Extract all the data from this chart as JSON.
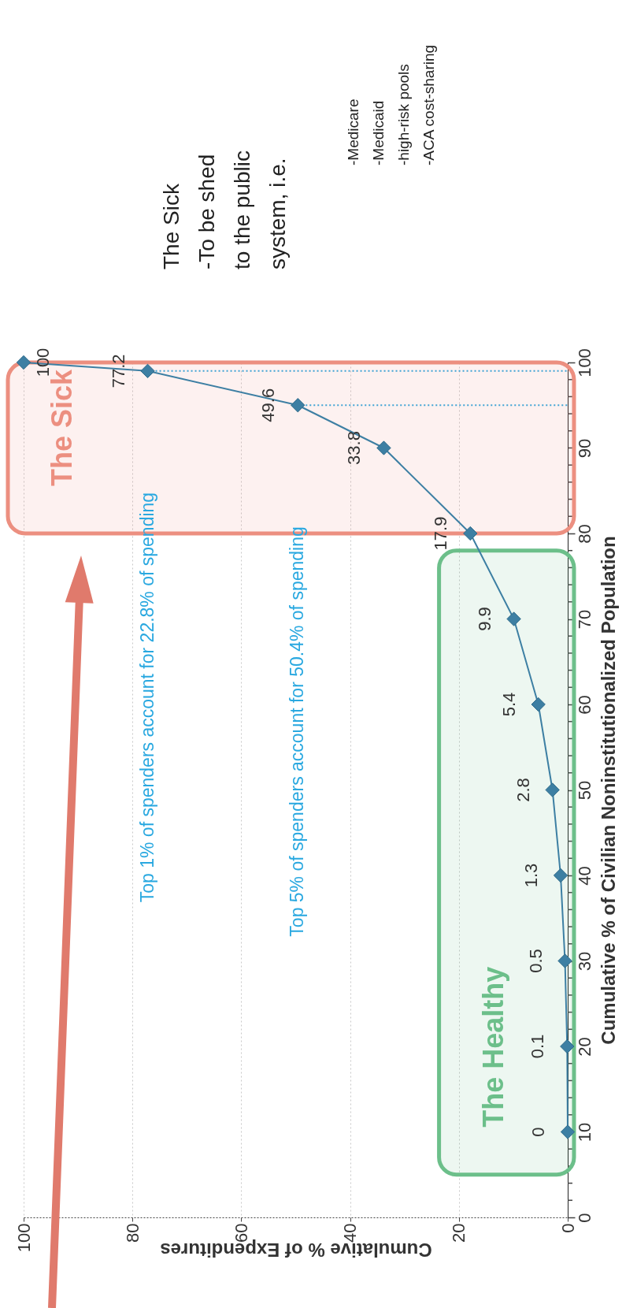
{
  "chart_data": {
    "type": "line",
    "xlabel": "Cumulative % of Expenditures",
    "ylabel": "Cumulative % of Civilian Noninstitutionalized Population",
    "annotations": [
      "The Sick\n-To be shed\nto the public\nsystem, i.e.",
      "-Medicare\n-Medicaid\n-high-risk pools\n-ACA cost-sharing"
    ],
    "series": [
      {
        "color": "#3d7fa3",
        "x": [
          10,
          20,
          30,
          40,
          50,
          60,
          70,
          80,
          90,
          95,
          99,
          100
        ],
        "values": [
          0,
          0.1,
          0.5,
          1.3,
          2.8,
          5.4,
          9.9,
          17.9,
          33.8,
          49.6,
          77.2,
          100
        ]
      }
    ],
    "orientation": "horizontal",
    "data_labels": true,
    "xlim": [
      100,
      0
    ],
    "xticks": [
      100,
      80,
      60,
      40,
      20,
      0
    ],
    "ylim": [
      0,
      100
    ],
    "yticks": [
      0,
      {
        "value": 2,
        "label": null
      },
      {
        "value": 4,
        "label": null
      },
      {
        "value": 6,
        "label": null
      },
      {
        "value": 8,
        "label": null
      },
      10,
      {
        "value": 12,
        "label": null
      },
      {
        "value": 14,
        "label": null
      },
      {
        "value": 16,
        "label": null
      },
      {
        "value": 18,
        "label": null
      },
      20,
      {
        "value": 22,
        "label": null
      },
      {
        "value": 24,
        "label": null
      },
      {
        "value": 26,
        "label": null
      },
      {
        "value": 28,
        "label": null
      },
      30,
      {
        "value": 32,
        "label": null
      },
      {
        "value": 34,
        "label": null
      },
      {
        "value": 36,
        "label": null
      },
      {
        "value": 38,
        "label": null
      },
      40,
      {
        "value": 42,
        "label": null
      },
      {
        "value": 44,
        "label": null
      },
      {
        "value": 46,
        "label": null
      },
      {
        "value": 48,
        "label": null
      },
      50,
      {
        "value": 52,
        "label": null
      },
      {
        "value": 54,
        "label": null
      },
      {
        "value": 56,
        "label": null
      },
      {
        "value": 58,
        "label": null
      },
      60,
      {
        "value": 62,
        "label": null
      },
      {
        "value": 64,
        "label": null
      },
      {
        "value": 66,
        "label": null
      },
      {
        "value": 68,
        "label": null
      },
      70,
      {
        "value": 72,
        "label": null
      },
      {
        "value": 74,
        "label": null
      },
      {
        "value": 76,
        "label": null
      },
      {
        "value": 78,
        "label": null
      },
      80,
      {
        "value": 82,
        "label": null
      },
      {
        "value": 84,
        "label": null
      },
      {
        "value": 86,
        "label": null
      },
      {
        "value": 88,
        "label": null
      },
      90,
      {
        "value": 92,
        "label": null
      },
      {
        "value": 94,
        "label": null
      },
      {
        "value": 96,
        "label": null
      },
      {
        "value": 98,
        "label": null
      },
      100
    ],
    "grid": "x",
    "marker": "diamond",
    "line_style": "solid",
    "ref_lines": [
      {
        "axis": "y",
        "value": 99,
        "label": "Top 1% of spenders account for 22.8% of spending",
        "color": "#29a8e0",
        "line_style": "dotted"
      },
      {
        "axis": "y",
        "value": 95,
        "label": "Top 5% of spenders account for 50.4% of spending",
        "color": "#29a8e0",
        "line_style": "dotted"
      }
    ],
    "bands": [
      {
        "axis": "y",
        "from": 80,
        "to": 100,
        "label": "The Sick",
        "color": "#ec8f80"
      },
      {
        "axis": "y",
        "from": 5,
        "to": 78,
        "label": "The Healthy",
        "color": "#6cbf8a"
      }
    ]
  }
}
